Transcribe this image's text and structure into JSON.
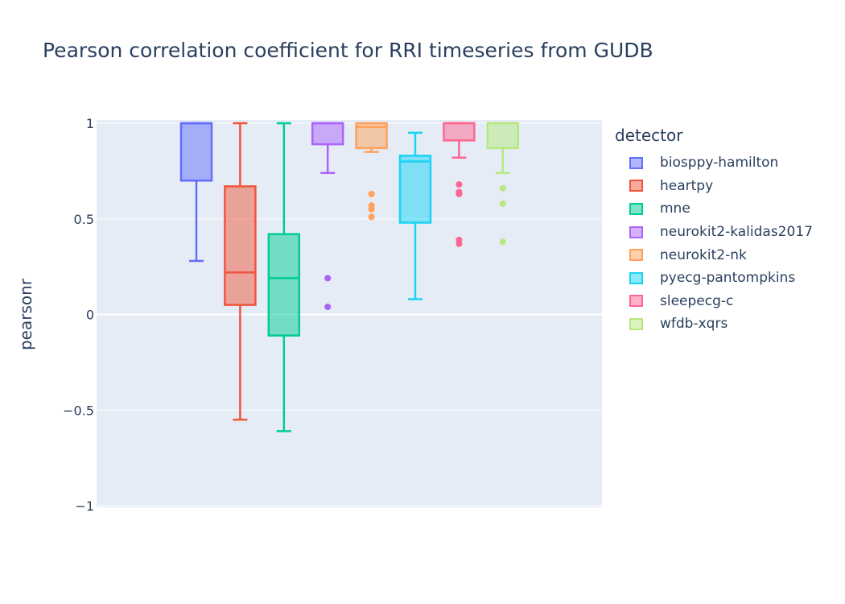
{
  "chart_data": {
    "type": "box",
    "title": "Pearson correlation coefficient for RRI timeseries from GUDB",
    "ylabel": "pearsonr",
    "xlabel": "",
    "ylim": [
      -1,
      1
    ],
    "yticks": [
      1,
      0.5,
      0,
      -0.5,
      -1
    ],
    "ytick_labels": [
      "1",
      "0.5",
      "0",
      "−0.5",
      "−1"
    ],
    "grid": true,
    "legend": {
      "title": "detector",
      "position": "right"
    },
    "series": [
      {
        "name": "biosppy-hamilton",
        "color": "#636efa",
        "min": 0.28,
        "q1": 0.7,
        "median": 1.0,
        "q3": 1.0,
        "max": 1.0,
        "outliers": []
      },
      {
        "name": "heartpy",
        "color": "#ef553b",
        "min": -0.55,
        "q1": 0.05,
        "median": 0.22,
        "q3": 0.67,
        "max": 1.0,
        "outliers": []
      },
      {
        "name": "mne",
        "color": "#00cc96",
        "min": -0.61,
        "q1": -0.11,
        "median": 0.19,
        "q3": 0.42,
        "max": 1.0,
        "outliers": []
      },
      {
        "name": "neurokit2-kalidas2017",
        "color": "#ab63fa",
        "min": 0.74,
        "q1": 0.89,
        "median": 1.0,
        "q3": 1.0,
        "max": 1.0,
        "outliers": [
          0.19,
          0.04
        ]
      },
      {
        "name": "neurokit2-nk",
        "color": "#ffa15a",
        "min": 0.85,
        "q1": 0.87,
        "median": 0.98,
        "q3": 1.0,
        "max": 1.0,
        "outliers": [
          0.63,
          0.57,
          0.55,
          0.51
        ]
      },
      {
        "name": "pyecg-pantompkins",
        "color": "#19d3f3",
        "min": 0.08,
        "q1": 0.48,
        "median": 0.8,
        "q3": 0.83,
        "max": 0.95,
        "outliers": []
      },
      {
        "name": "sleepecg-c",
        "color": "#ff6692",
        "min": 0.82,
        "q1": 0.91,
        "median": 1.0,
        "q3": 1.0,
        "max": 1.0,
        "outliers": [
          0.68,
          0.64,
          0.63,
          0.39,
          0.37
        ]
      },
      {
        "name": "wfdb-xqrs",
        "color": "#b6e880",
        "min": 0.74,
        "q1": 0.87,
        "median": 1.0,
        "q3": 1.0,
        "max": 1.0,
        "outliers": [
          0.66,
          0.58,
          0.38
        ]
      }
    ]
  }
}
